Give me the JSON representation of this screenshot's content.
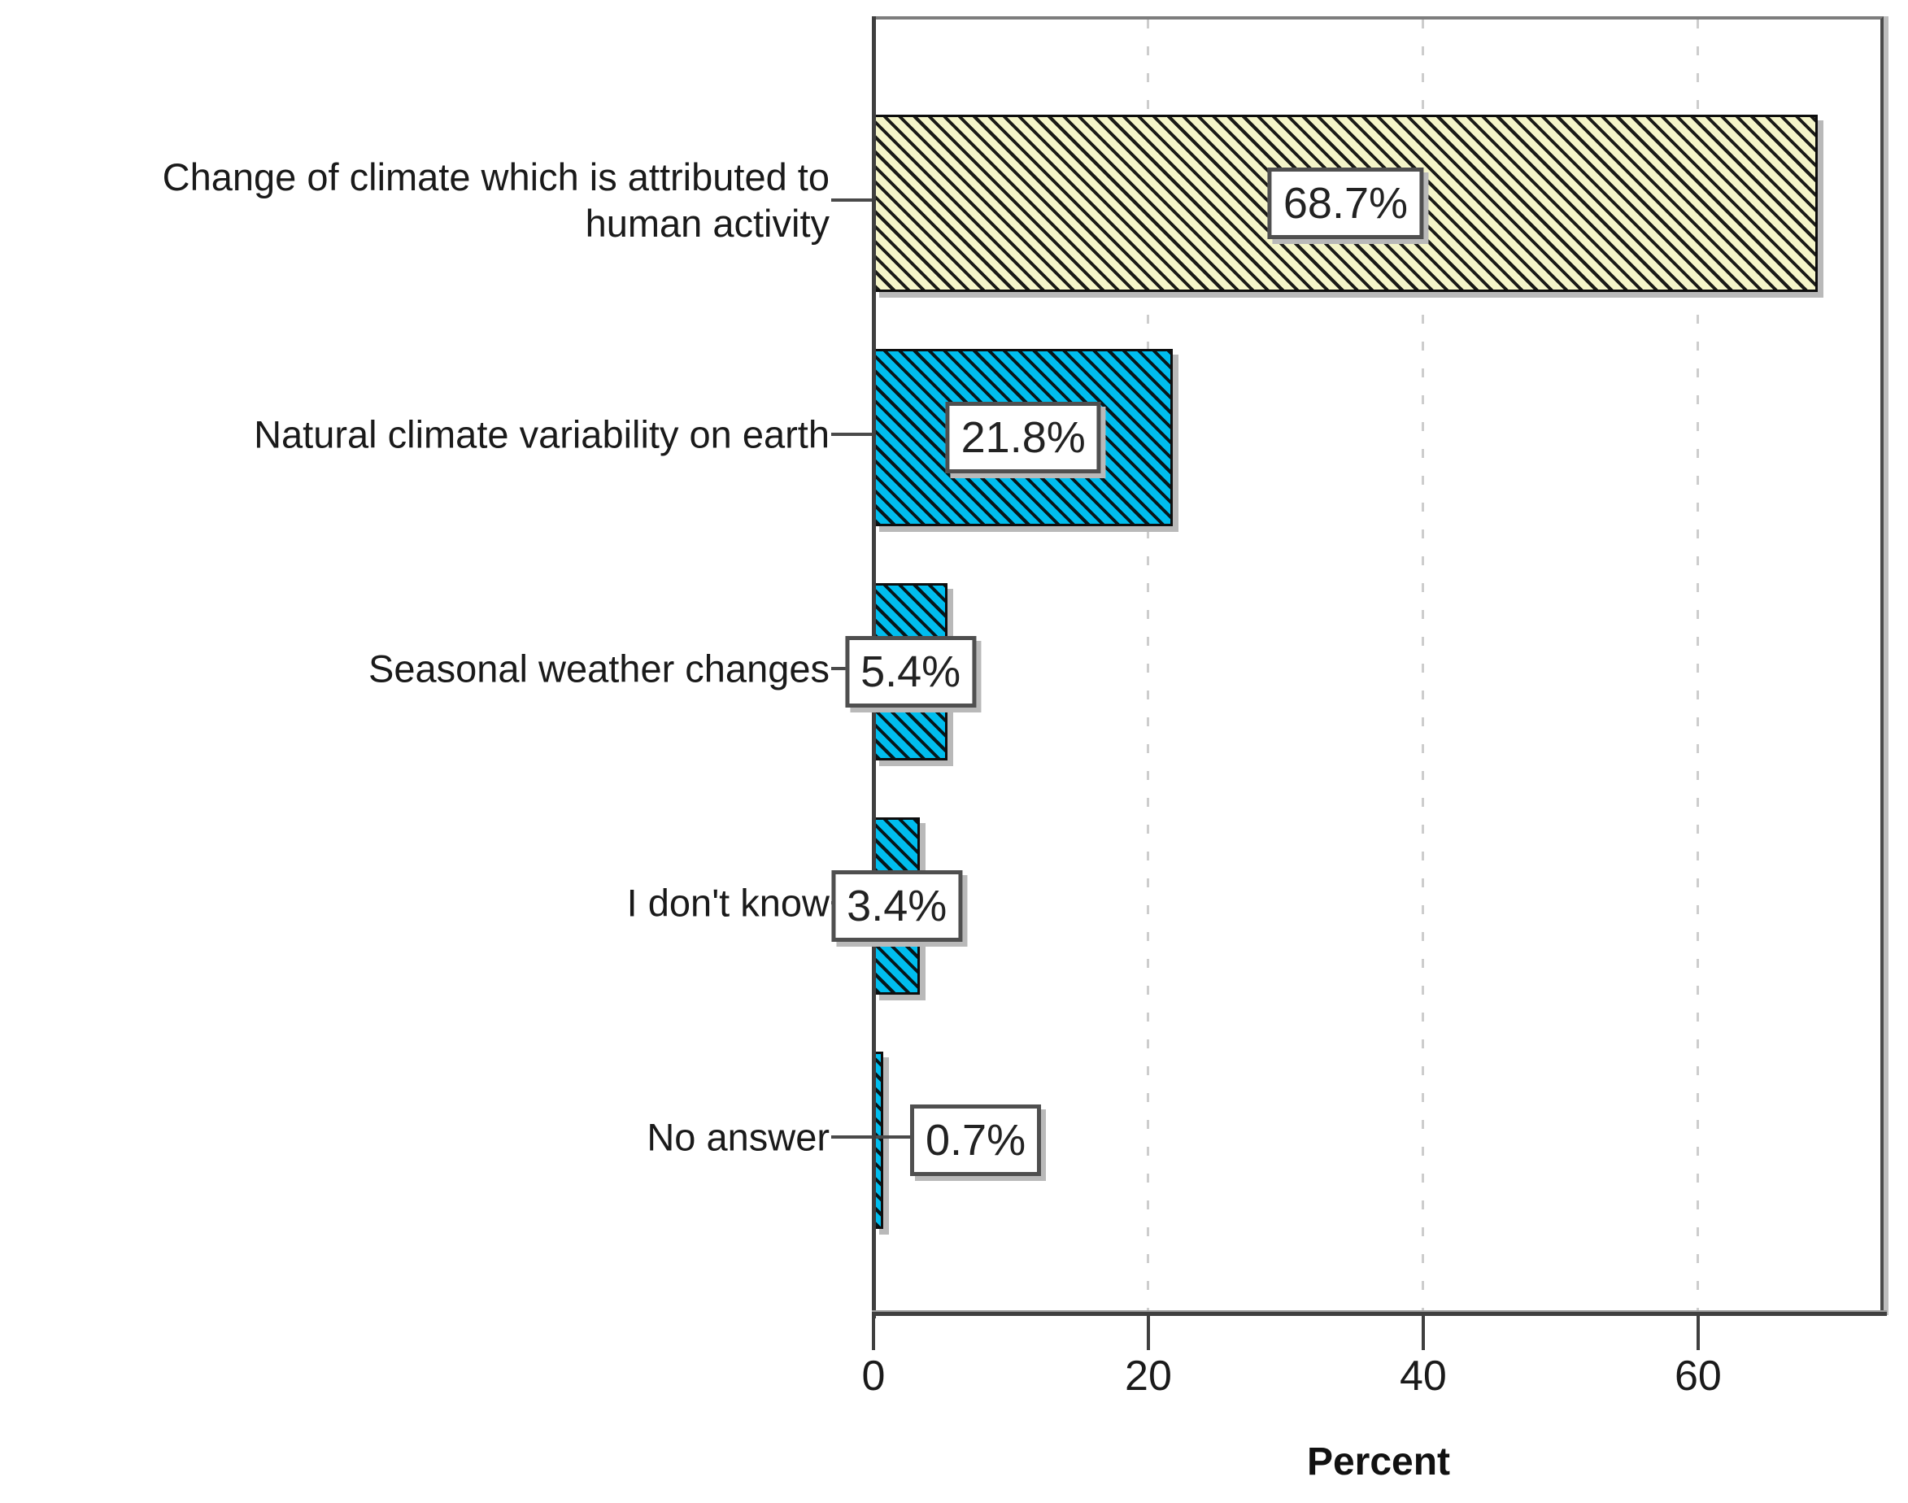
{
  "chart_data": {
    "type": "bar",
    "orientation": "horizontal",
    "title": "",
    "xlabel": "Percent",
    "ylabel": "",
    "categories": [
      "Change of climate which is attributed to human activity",
      "Natural climate variability on earth",
      "Seasonal weather changes",
      "I don't know",
      "No answer"
    ],
    "category_lines": [
      [
        "Change of climate which is attributed to",
        "human activity"
      ],
      [
        "Natural climate variability on earth"
      ],
      [
        "Seasonal weather changes"
      ],
      [
        "I don't know"
      ],
      [
        "No answer"
      ]
    ],
    "values": [
      68.7,
      21.8,
      5.4,
      3.4,
      0.7
    ],
    "value_labels": [
      "68.7%",
      "21.8%",
      "5.4%",
      "3.4%",
      "0.7%"
    ],
    "x_ticks": [
      0,
      20,
      40,
      60
    ],
    "xlim": [
      0,
      73.5
    ],
    "grid": "vertical-dashed",
    "legend": "none",
    "bar_colors": [
      "#F5F5C9",
      "#00BDEE",
      "#00BDEE",
      "#00BDEE",
      "#00BDEE"
    ],
    "hatch": "diagonal-backslash-black",
    "gridline_color": "#cdcdcd",
    "value_box_bg": "#ffffff",
    "value_box_border": "#4f4f4f"
  }
}
